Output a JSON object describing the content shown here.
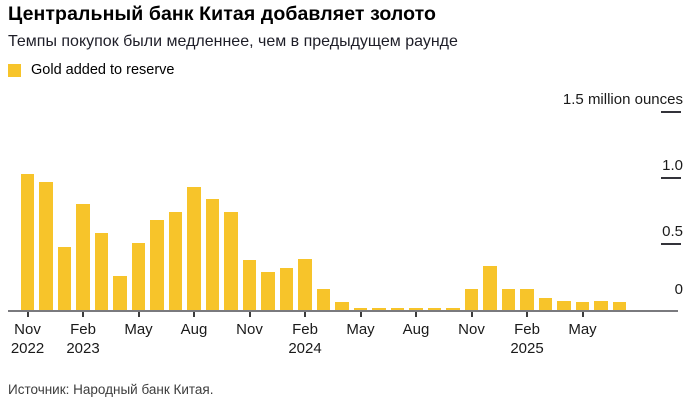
{
  "header": {
    "title": "Центральный банк Китая добавляет золото",
    "subtitle": "Темпы покупок были медленнее, чем в предыдущем раунде"
  },
  "legend": {
    "label": "Gold added to reserve"
  },
  "footer": {
    "source": "Источник: Народный банк Китая."
  },
  "colors": {
    "bar": "#f7c42a",
    "axis_line": "#7a7a7e",
    "x_tick": "#3c3c3c",
    "y_dash": "#33333a",
    "text": "#1a1a1a",
    "source_text": "#3d3d3d"
  },
  "chart_data": {
    "type": "bar",
    "title": "Центральный банк Китая добавляет золото",
    "subtitle": "Темпы покупок были медленнее, чем в предыдущем раунде",
    "series_name": "Gold added to reserve",
    "ylabel": "million ounces",
    "ylim": [
      0,
      1.5
    ],
    "grid": false,
    "legend_position": "top-left",
    "x": [
      "2022-11",
      "2022-12",
      "2023-01",
      "2023-02",
      "2023-03",
      "2023-04",
      "2023-05",
      "2023-06",
      "2023-07",
      "2023-08",
      "2023-09",
      "2023-10",
      "2023-11",
      "2023-12",
      "2024-01",
      "2024-02",
      "2024-03",
      "2024-04",
      "2024-05",
      "2024-06",
      "2024-07",
      "2024-08",
      "2024-09",
      "2024-10",
      "2024-11",
      "2024-12",
      "2025-01",
      "2025-02",
      "2025-03",
      "2025-04",
      "2025-05",
      "2025-06",
      "2025-07"
    ],
    "values": [
      1.03,
      0.97,
      0.48,
      0.8,
      0.58,
      0.26,
      0.51,
      0.68,
      0.74,
      0.93,
      0.84,
      0.74,
      0.38,
      0.29,
      0.32,
      0.39,
      0.16,
      0.06,
      0,
      0,
      0,
      0,
      0,
      0,
      0.16,
      0.33,
      0.16,
      0.16,
      0.09,
      0.07,
      0.06,
      0.07,
      0.06
    ],
    "x_ticks": [
      {
        "index": 0,
        "month": "Nov",
        "year": "2022"
      },
      {
        "index": 3,
        "month": "Feb",
        "year": "2023"
      },
      {
        "index": 6,
        "month": "May",
        "year": ""
      },
      {
        "index": 9,
        "month": "Aug",
        "year": ""
      },
      {
        "index": 12,
        "month": "Nov",
        "year": ""
      },
      {
        "index": 15,
        "month": "Feb",
        "year": "2024"
      },
      {
        "index": 18,
        "month": "May",
        "year": ""
      },
      {
        "index": 21,
        "month": "Aug",
        "year": ""
      },
      {
        "index": 24,
        "month": "Nov",
        "year": ""
      },
      {
        "index": 27,
        "month": "Feb",
        "year": "2025"
      },
      {
        "index": 30,
        "month": "May",
        "year": ""
      }
    ],
    "y_ticks": [
      {
        "value": 0,
        "label": "0",
        "dash": false
      },
      {
        "value": 0.5,
        "label": "0.5",
        "dash": true
      },
      {
        "value": 1.0,
        "label": "1.0",
        "dash": true
      },
      {
        "value": 1.5,
        "label": "1.5 million ounces",
        "dash": true
      }
    ]
  }
}
